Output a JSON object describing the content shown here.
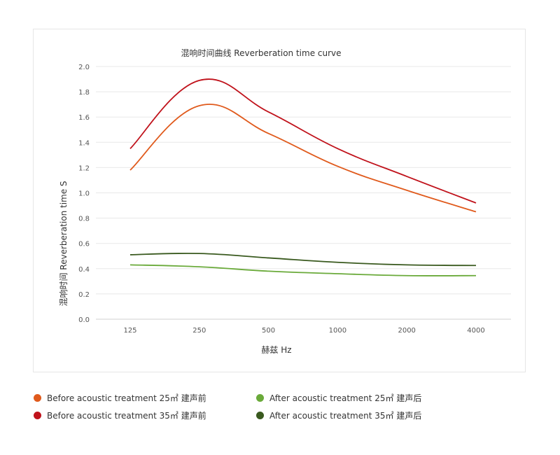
{
  "chart_data": {
    "type": "line",
    "title": "混响时间曲线 Reverberation time curve",
    "xlabel": "赫兹 Hz",
    "ylabel": "混响时间 Reverberation time  S",
    "categories": [
      "125",
      "250",
      "500",
      "1000",
      "2000",
      "4000"
    ],
    "ylim": [
      0,
      2.0
    ],
    "yticks": [
      "0.0",
      "0.2",
      "0.4",
      "0.6",
      "0.8",
      "1.0",
      "1.2",
      "1.4",
      "1.6",
      "1.8",
      "2.0"
    ],
    "grid": true,
    "legend_position": "bottom",
    "series": [
      {
        "name": "Before acoustic treatment 25㎡ 建声前",
        "color": "#e05a1c",
        "values": [
          1.18,
          1.69,
          1.47,
          1.21,
          1.02,
          0.85
        ]
      },
      {
        "name": "Before acoustic treatment 35㎡ 建声前",
        "color": "#c0121b",
        "values": [
          1.35,
          1.89,
          1.64,
          1.35,
          1.13,
          0.92
        ]
      },
      {
        "name": "After acoustic treatment 25㎡ 建声后",
        "color": "#6aaa3a",
        "values": [
          0.43,
          0.415,
          0.38,
          0.36,
          0.345,
          0.345
        ]
      },
      {
        "name": "After acoustic treatment 35㎡ 建声后",
        "color": "#3a5a1f",
        "values": [
          0.51,
          0.52,
          0.485,
          0.45,
          0.43,
          0.425
        ]
      }
    ]
  }
}
